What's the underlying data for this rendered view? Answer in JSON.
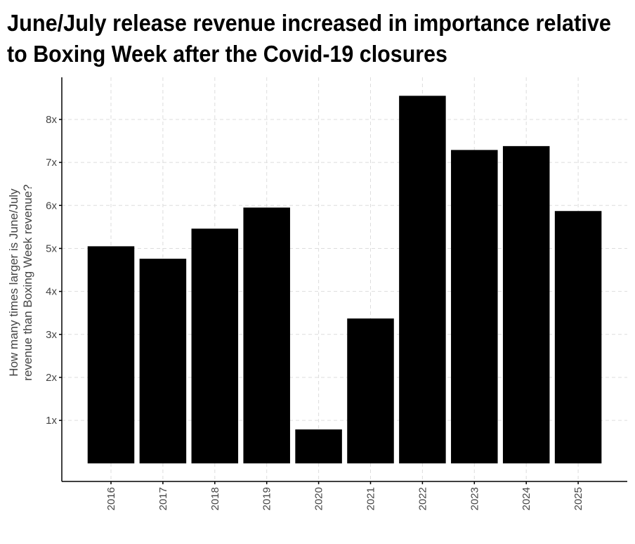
{
  "chart_data": {
    "type": "bar",
    "title_lines": [
      "June/July release revenue increased in importance relative",
      "to Boxing Week after the Covid-19 closures"
    ],
    "y_label_lines": [
      "How many times larger is June/July",
      "revenue than Boxing Week revenue?"
    ],
    "categories": [
      "2016",
      "2017",
      "2018",
      "2019",
      "2020",
      "2021",
      "2022",
      "2023",
      "2024",
      "2025"
    ],
    "values": [
      5.05,
      4.76,
      5.46,
      5.95,
      0.79,
      3.37,
      8.55,
      7.29,
      7.38,
      5.87
    ],
    "color": "#000000",
    "ylim": [
      -0.42,
      8.98
    ],
    "yticks": [
      {
        "value": 1,
        "label": "1x"
      },
      {
        "value": 2,
        "label": "2x"
      },
      {
        "value": 3,
        "label": "3x"
      },
      {
        "value": 4,
        "label": "4x"
      },
      {
        "value": 5,
        "label": "5x"
      },
      {
        "value": 6,
        "label": "6x"
      },
      {
        "value": 7,
        "label": "7x"
      },
      {
        "value": 8,
        "label": "8x"
      }
    ],
    "grid": true
  }
}
